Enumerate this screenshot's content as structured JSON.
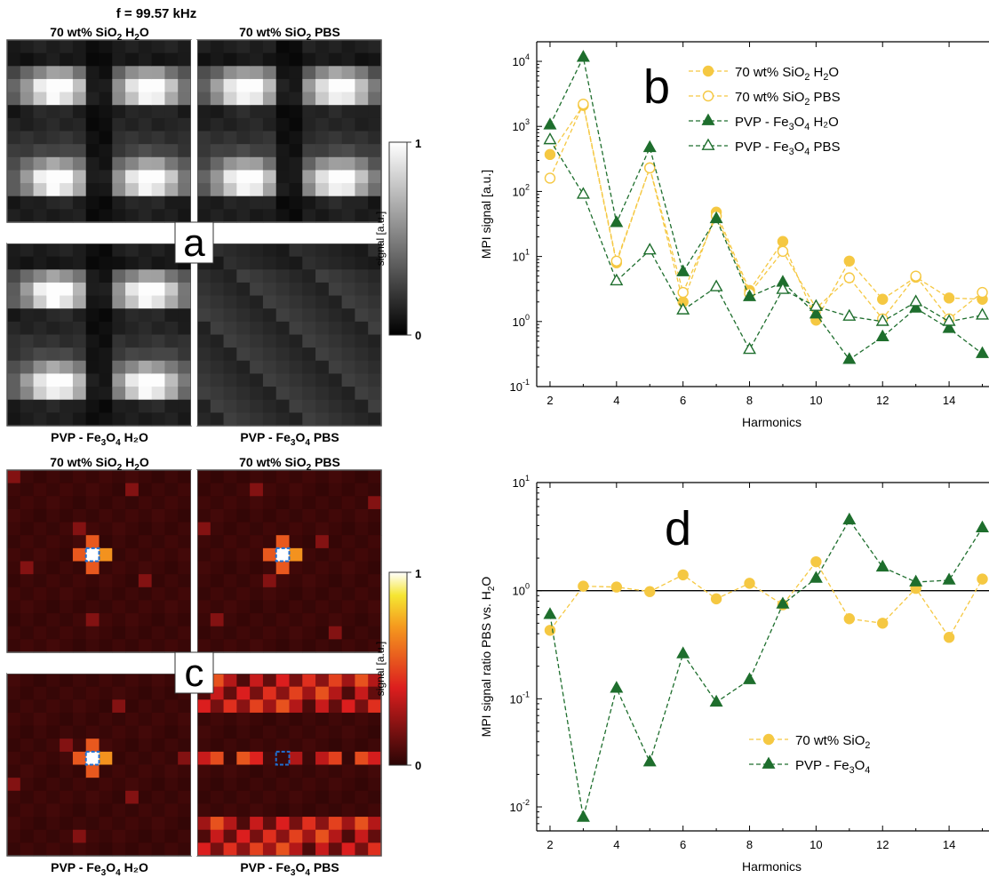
{
  "figure": {
    "frequency_label": "f = 99.57 kHz",
    "colors": {
      "gold": "#f5c842",
      "green": "#1e6e2d",
      "frame": "#555555",
      "ref_line": "#000000"
    }
  },
  "panel_a": {
    "letter": "a",
    "colorbar_label": "signal [a.u.]",
    "colorbar_ticks": [
      "0",
      "1"
    ],
    "colormap": "grayscale",
    "titles_top": [
      {
        "pre": "70 wt% SiO",
        "sub": "2",
        "post": " H",
        "sub2": "2",
        "post2": "O"
      },
      {
        "pre": "70 wt% SiO",
        "sub": "2",
        "post": " PBS",
        "sub2": "",
        "post2": ""
      }
    ],
    "titles_bottom": [
      {
        "pre": "PVP - Fe",
        "sub": "3",
        "post": "O",
        "sub2": "4",
        "post2": " H₂O"
      },
      {
        "pre": "PVP - Fe",
        "sub": "3",
        "post": "O",
        "sub2": "4",
        "post2": " PBS"
      }
    ]
  },
  "panel_c": {
    "letter": "c",
    "colorbar_label": "signal [a.u.]",
    "colorbar_ticks": [
      "0",
      "1"
    ],
    "colormap": "hot",
    "titles_top": [
      {
        "pre": "70 wt% SiO",
        "sub": "2",
        "post": " H",
        "sub2": "2",
        "post2": "O"
      },
      {
        "pre": "70 wt% SiO",
        "sub": "2",
        "post": " PBS",
        "sub2": "",
        "post2": ""
      }
    ],
    "titles_bottom": [
      {
        "pre": "PVP - Fe",
        "sub": "3",
        "post": "O",
        "sub2": "4",
        "post2": " H₂O"
      },
      {
        "pre": "PVP - Fe",
        "sub": "3",
        "post": "O",
        "sub2": "4",
        "post2": " PBS"
      }
    ]
  },
  "chart_data": [
    {
      "id": "b",
      "type": "line",
      "panel_letter": "b",
      "xlabel": "Harmonics",
      "ylabel": "MPI signal [a.u.]",
      "yscale": "log",
      "xlim": [
        1.6,
        15.2
      ],
      "ylim": [
        0.1,
        20000
      ],
      "xticks": [
        2,
        4,
        6,
        8,
        10,
        12,
        14
      ],
      "yticks": [
        {
          "v": 0.1,
          "e": "-1"
        },
        {
          "v": 1,
          "e": "0"
        },
        {
          "v": 10,
          "e": "1"
        },
        {
          "v": 100,
          "e": "2"
        },
        {
          "v": 1000,
          "e": "3"
        },
        {
          "v": 10000,
          "e": "4"
        }
      ],
      "legend_position": "top-right",
      "x": [
        2,
        3,
        4,
        5,
        6,
        7,
        8,
        9,
        10,
        11,
        12,
        13,
        14,
        15
      ],
      "series": [
        {
          "label_pre": "70 wt% SiO",
          "label_sub": "2",
          "label_post": " H",
          "label_sub2": "2",
          "label_post2": "O",
          "color": "#f5c842",
          "marker": "circle",
          "filled": true,
          "values": [
            370,
            2100,
            8,
            230,
            2,
            48,
            3,
            17,
            1.05,
            8.5,
            2.2,
            4.8,
            2.3,
            2.2
          ]
        },
        {
          "label_pre": "70 wt% SiO",
          "label_sub": "2",
          "label_post": " PBS",
          "label_sub2": "",
          "label_post2": "",
          "color": "#f5c842",
          "marker": "circle",
          "filled": false,
          "values": [
            160,
            2200,
            8.5,
            230,
            2.8,
            42,
            2.7,
            12,
            1.6,
            4.7,
            1.1,
            5,
            1.1,
            2.8
          ]
        },
        {
          "label_pre": "PVP - Fe",
          "label_sub": "3",
          "label_post": "O",
          "label_sub2": "4",
          "label_post2": " H₂O",
          "color": "#1e6e2d",
          "marker": "triangle",
          "filled": true,
          "values": [
            1050,
            11500,
            33,
            470,
            5.8,
            38,
            2.4,
            4,
            1.3,
            0.26,
            0.58,
            1.6,
            0.78,
            0.32
          ]
        },
        {
          "label_pre": "PVP - Fe",
          "label_sub": "3",
          "label_post": "O",
          "label_sub2": "4",
          "label_post2": " PBS",
          "color": "#1e6e2d",
          "marker": "triangle",
          "filled": false,
          "values": [
            620,
            90,
            4.2,
            12.5,
            1.5,
            3.4,
            0.37,
            3.1,
            1.7,
            1.2,
            1.0,
            2.0,
            1.0,
            1.25
          ]
        }
      ]
    },
    {
      "id": "d",
      "type": "line",
      "panel_letter": "d",
      "xlabel": "Harmonics",
      "ylabel_pre": "MPI signal ratio PBS vs. H",
      "ylabel_sub": "2",
      "ylabel_post": "O",
      "yscale": "log",
      "xlim": [
        1.6,
        15.2
      ],
      "ylim": [
        0.006,
        10
      ],
      "xticks": [
        2,
        4,
        6,
        8,
        10,
        12,
        14
      ],
      "yticks": [
        {
          "v": 0.01,
          "e": "-2"
        },
        {
          "v": 0.1,
          "e": "-1"
        },
        {
          "v": 1,
          "e": "0"
        },
        {
          "v": 10,
          "e": "1"
        }
      ],
      "reference_line": 1,
      "legend_position": "bottom-center",
      "x": [
        2,
        3,
        4,
        5,
        6,
        7,
        8,
        9,
        10,
        11,
        12,
        13,
        14,
        15
      ],
      "series": [
        {
          "label_pre": "70 wt% SiO",
          "label_sub": "2",
          "label_post": "",
          "label_sub2": "",
          "label_post2": "",
          "color": "#f5c842",
          "marker": "circle",
          "filled": true,
          "values": [
            0.43,
            1.1,
            1.08,
            0.98,
            1.4,
            0.84,
            1.17,
            0.74,
            1.85,
            0.55,
            0.5,
            1.05,
            0.37,
            1.28
          ]
        },
        {
          "label_pre": "PVP - Fe",
          "label_sub": "3",
          "label_post": "O",
          "label_sub2": "4",
          "label_post2": "",
          "color": "#1e6e2d",
          "marker": "triangle",
          "filled": true,
          "values": [
            0.6,
            0.008,
            0.125,
            0.026,
            0.26,
            0.093,
            0.15,
            0.75,
            1.3,
            4.5,
            1.65,
            1.2,
            1.25,
            3.8
          ]
        }
      ]
    }
  ]
}
